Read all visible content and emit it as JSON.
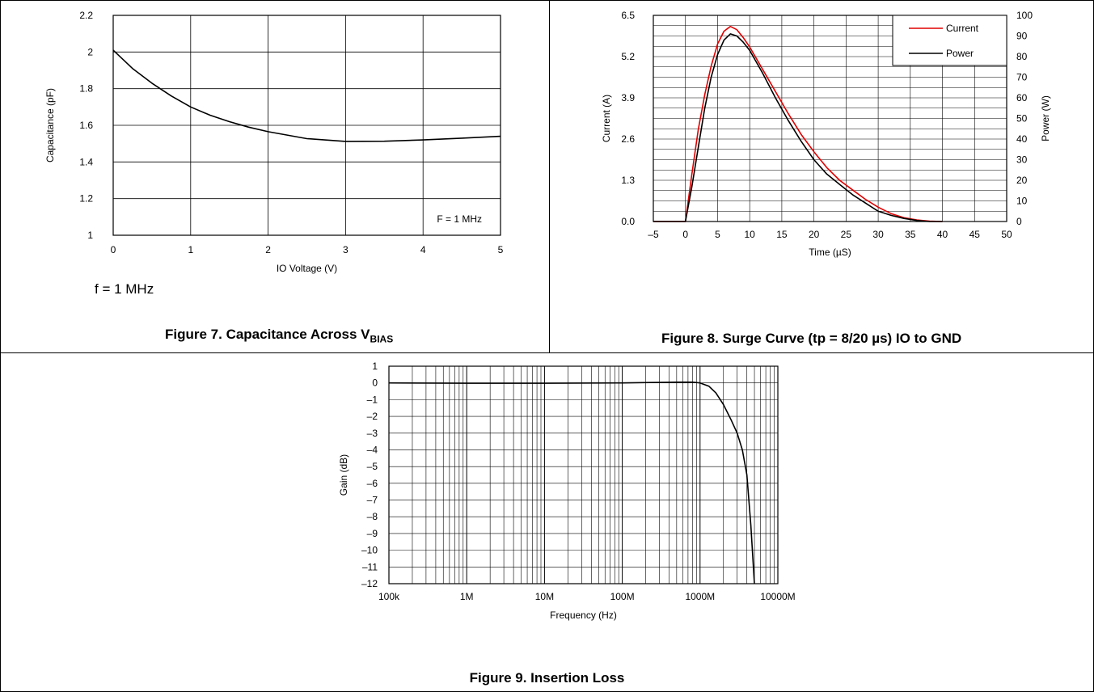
{
  "chart_data": [
    {
      "id": "fig7",
      "type": "line",
      "caption": {
        "main": "Figure 7. Capacitance Across V",
        "sub": "BIAS"
      },
      "note": "f = 1 MHz",
      "annotation": "F = 1 MHz",
      "xlabel": "IO Voltage (V)",
      "ylabel": "Capacitance (pF)",
      "xlim": [
        0,
        5
      ],
      "ylim": [
        1,
        2.2
      ],
      "xticks": [
        0,
        1,
        2,
        3,
        4,
        5
      ],
      "xtick_labels": [
        "0",
        "1",
        "2",
        "3",
        "4",
        "5"
      ],
      "yticks": [
        1,
        1.2,
        1.4,
        1.6,
        1.8,
        2,
        2.2
      ],
      "ytick_labels": [
        "1",
        "1.2",
        "1.4",
        "1.6",
        "1.8",
        "2",
        "2.2"
      ],
      "grid": true,
      "series": [
        {
          "color": "#000000",
          "x": [
            0,
            0.25,
            0.5,
            0.75,
            1,
            1.25,
            1.5,
            1.75,
            2,
            2.5,
            3,
            3.5,
            4,
            4.5,
            5
          ],
          "y": [
            2.01,
            1.91,
            1.83,
            1.76,
            1.7,
            1.655,
            1.62,
            1.59,
            1.565,
            1.527,
            1.512,
            1.513,
            1.52,
            1.53,
            1.54
          ]
        }
      ]
    },
    {
      "id": "fig8",
      "type": "line",
      "caption": "Figure 8. Surge Curve (tp = 8/20 µs) IO to GND",
      "xlabel": "Time (µS)",
      "ylabel": "Current (A)",
      "y2label": "Power (W)",
      "xlim": [
        -5,
        50
      ],
      "ylim": [
        0,
        6.5
      ],
      "y2lim": [
        0,
        100
      ],
      "xticks": [
        -5,
        0,
        5,
        10,
        15,
        20,
        25,
        30,
        35,
        40,
        45,
        50
      ],
      "xtick_labels": [
        "–5",
        "0",
        "5",
        "10",
        "15",
        "20",
        "25",
        "30",
        "35",
        "40",
        "45",
        "50"
      ],
      "yticks": [
        0,
        1.3,
        2.6,
        3.9,
        5.2,
        6.5
      ],
      "ytick_labels": [
        "0.0",
        "1.3",
        "2.6",
        "3.9",
        "5.2",
        "6.5"
      ],
      "y2ticks": [
        0,
        10,
        20,
        30,
        40,
        50,
        60,
        70,
        80,
        90,
        100
      ],
      "y2tick_labels": [
        "0",
        "10",
        "20",
        "30",
        "40",
        "50",
        "60",
        "70",
        "80",
        "90",
        "100"
      ],
      "grid": true,
      "legend_position": "top-right",
      "series": [
        {
          "name": "Current",
          "color": "#e00000",
          "axis": "left",
          "x": [
            -5,
            0,
            1,
            2,
            3,
            4,
            5,
            6,
            7,
            8,
            9,
            10,
            12,
            14,
            16,
            18,
            20,
            22,
            24,
            26,
            28,
            30,
            32,
            34,
            36,
            38,
            40
          ],
          "y": [
            0,
            0,
            1.5,
            2.9,
            4.0,
            4.9,
            5.6,
            6.0,
            6.15,
            6.05,
            5.8,
            5.5,
            4.8,
            4.1,
            3.4,
            2.75,
            2.2,
            1.7,
            1.3,
            1.0,
            0.7,
            0.45,
            0.25,
            0.12,
            0.05,
            0.01,
            0
          ]
        },
        {
          "name": "Power",
          "color": "#000000",
          "axis": "right",
          "x": [
            -5,
            0,
            1,
            2,
            3,
            4,
            5,
            6,
            7,
            8,
            9,
            10,
            12,
            14,
            16,
            18,
            20,
            22,
            24,
            26,
            28,
            30,
            32,
            34,
            36,
            38,
            40
          ],
          "y": [
            0,
            0,
            17,
            36,
            55,
            70,
            81,
            88,
            91,
            90,
            87,
            83,
            72,
            60,
            49,
            39,
            30,
            23,
            18,
            13,
            9,
            5,
            3,
            1.5,
            0.5,
            0,
            0
          ]
        }
      ]
    },
    {
      "id": "fig9",
      "type": "line",
      "caption": "Figure 9. Insertion Loss",
      "xlabel": "Frequency (Hz)",
      "ylabel": "Gain (dB)",
      "xscale": "log",
      "xlim": [
        100000,
        10000000000
      ],
      "ylim": [
        -12,
        1
      ],
      "xticks": [
        100000,
        1000000,
        10000000,
        100000000,
        1000000000,
        10000000000
      ],
      "xtick_labels": [
        "100k",
        "1M",
        "10M",
        "100M",
        "1000M",
        "10000M"
      ],
      "yticks": [
        1,
        0,
        -1,
        -2,
        -3,
        -4,
        -5,
        -6,
        -7,
        -8,
        -9,
        -10,
        -11,
        -12
      ],
      "ytick_labels": [
        "1",
        "0",
        "–1",
        "–2",
        "–3",
        "–4",
        "–5",
        "–6",
        "–7",
        "–8",
        "–9",
        "–10",
        "–11",
        "–12"
      ],
      "grid": true,
      "series": [
        {
          "color": "#000000",
          "x": [
            100000,
            1000000,
            10000000,
            100000000,
            500000000,
            800000000,
            1000000000,
            1300000000,
            1600000000,
            2000000000,
            2500000000,
            3000000000,
            3500000000,
            4000000000,
            4500000000,
            5000000000
          ],
          "y": [
            0,
            -0.02,
            -0.02,
            0,
            0.05,
            0.05,
            0,
            -0.2,
            -0.6,
            -1.3,
            -2.2,
            -3.0,
            -4.0,
            -5.5,
            -8.5,
            -12
          ]
        }
      ]
    }
  ]
}
